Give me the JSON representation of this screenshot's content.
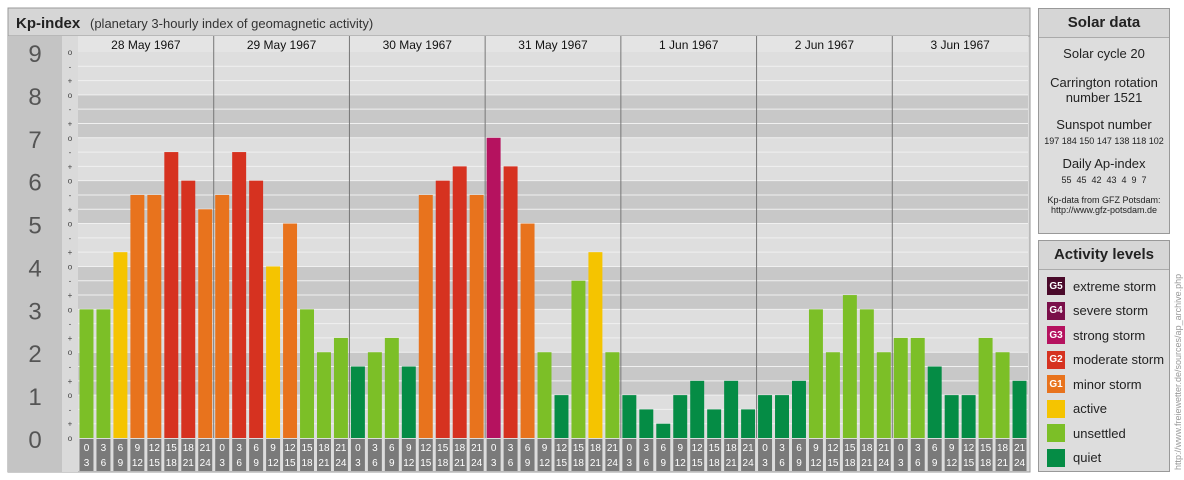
{
  "title": "Kp-index",
  "subtitle": "(planetary 3-hourly index of geomagnetic activity)",
  "chart_data": {
    "type": "bar",
    "title": "Kp-index",
    "subtitle": "(planetary 3-hourly index of geomagnetic activity)",
    "ylim": [
      0,
      9
    ],
    "y_ticks": [
      "0",
      "1",
      "2",
      "3",
      "4",
      "5",
      "6",
      "7",
      "8",
      "9"
    ],
    "minor_ticks": [
      "o",
      "+",
      "-"
    ],
    "days": [
      "28 May 1967",
      "29 May 1967",
      "30 May 1967",
      "31 May 1967",
      "1 Jun 1967",
      "2 Jun 1967",
      "3 Jun 1967"
    ],
    "hour_start_labels": [
      "0",
      "3",
      "6",
      "9",
      "12",
      "15",
      "18",
      "21"
    ],
    "hour_end_labels": [
      "3",
      "6",
      "9",
      "12",
      "15",
      "18",
      "21",
      "24"
    ],
    "values": [
      [
        3.0,
        3.0,
        4.333,
        5.667,
        5.667,
        6.667,
        6.0,
        5.333
      ],
      [
        5.667,
        6.667,
        6.0,
        4.0,
        5.0,
        3.0,
        2.0,
        2.333
      ],
      [
        1.667,
        2.0,
        2.333,
        1.667,
        5.667,
        6.0,
        6.333,
        5.667
      ],
      [
        7.0,
        6.333,
        5.0,
        2.0,
        1.0,
        3.667,
        4.333,
        2.0
      ],
      [
        1.0,
        0.667,
        0.333,
        1.0,
        1.333,
        0.667,
        1.333,
        0.667
      ],
      [
        1.0,
        1.0,
        1.333,
        3.0,
        2.0,
        3.333,
        3.0,
        2.0
      ],
      [
        2.333,
        2.333,
        1.667,
        1.0,
        1.0,
        2.333,
        2.0,
        1.333
      ]
    ]
  },
  "solar": {
    "title": "Solar data",
    "cycle": "Solar cycle 20",
    "carrington_line1": "Carrington rotation",
    "carrington_line2": "number 1521",
    "sunspot_title": "Sunspot number",
    "sunspot_values": "197 184 150 147 138 118 102",
    "ap_title": "Daily Ap-index",
    "ap_values": "55  45  42  43  4  9  7",
    "source_line1": "Kp-data from GFZ Potsdam:",
    "source_line2": "http://www.gfz-potsdam.de"
  },
  "activity": {
    "title": "Activity levels",
    "levels": [
      {
        "badge": "G5",
        "label": "extreme storm",
        "color": "#4a0a2a"
      },
      {
        "badge": "G4",
        "label": "severe storm",
        "color": "#7a0f4a"
      },
      {
        "badge": "G3",
        "label": "strong storm",
        "color": "#b5125f"
      },
      {
        "badge": "G2",
        "label": "moderate storm",
        "color": "#d63220"
      },
      {
        "badge": "G1",
        "label": "minor storm",
        "color": "#e8731d"
      },
      {
        "badge": "",
        "label": "active",
        "color": "#f5c400"
      },
      {
        "badge": "",
        "label": "unsettled",
        "color": "#7cbf27"
      },
      {
        "badge": "",
        "label": "quiet",
        "color": "#058c45"
      }
    ]
  },
  "watermark": "http://www.freiewetter.de/sources/ap_archive.php"
}
